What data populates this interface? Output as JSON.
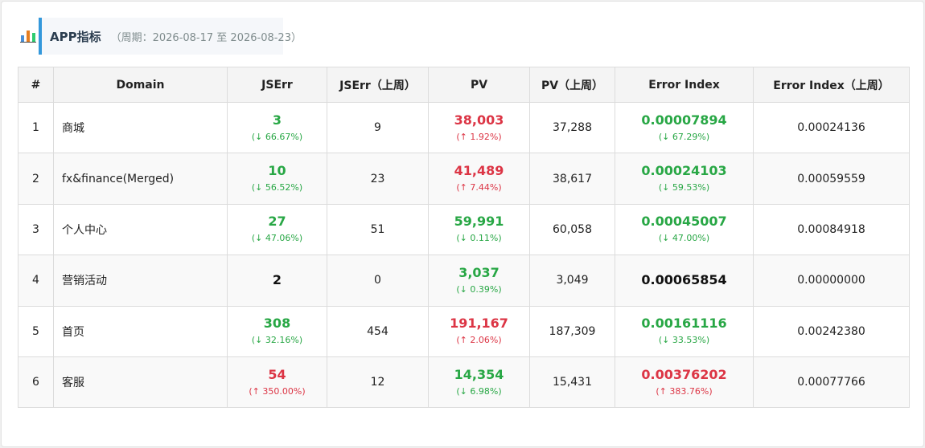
{
  "header": {
    "icon": "chart-icon",
    "title": "APP指标",
    "period": "（周期：2026-08-17 至 2026-08-23）"
  },
  "table": {
    "columns": [
      "#",
      "Domain",
      "JSErr",
      "JSErr（上周）",
      "PV",
      "PV（上周）",
      "Error Index",
      "Error Index（上周）"
    ],
    "rows": [
      {
        "idx": "1",
        "domain": "商城",
        "jserr": "3",
        "jserr_chg": "(↓ 66.67%)",
        "jserr_prev": "9",
        "pv": "38,003",
        "pv_chg": "(↑ 1.92%)",
        "pv_prev": "37,288",
        "ei": "0.00007894",
        "ei_chg": "(↓ 67.29%)",
        "ei_prev": "0.00024136"
      },
      {
        "idx": "2",
        "domain": "fx&finance(Merged)",
        "jserr": "10",
        "jserr_chg": "(↓ 56.52%)",
        "jserr_prev": "23",
        "pv": "41,489",
        "pv_chg": "(↑ 7.44%)",
        "pv_prev": "38,617",
        "ei": "0.00024103",
        "ei_chg": "(↓ 59.53%)",
        "ei_prev": "0.00059559"
      },
      {
        "idx": "3",
        "domain": "个人中心",
        "jserr": "27",
        "jserr_chg": "(↓ 47.06%)",
        "jserr_prev": "51",
        "pv": "59,991",
        "pv_chg": "(↓ 0.11%)",
        "pv_prev": "60,058",
        "ei": "0.00045007",
        "ei_chg": "(↓ 47.00%)",
        "ei_prev": "0.00084918"
      },
      {
        "idx": "4",
        "domain": "营销活动",
        "jserr": "2",
        "jserr_chg": "",
        "jserr_prev": "0",
        "pv": "3,037",
        "pv_chg": "(↓ 0.39%)",
        "pv_prev": "3,049",
        "ei": "0.00065854",
        "ei_chg": "",
        "ei_prev": "0.00000000"
      },
      {
        "idx": "5",
        "domain": "首页",
        "jserr": "308",
        "jserr_chg": "(↓ 32.16%)",
        "jserr_prev": "454",
        "pv": "191,167",
        "pv_chg": "(↑ 2.06%)",
        "pv_prev": "187,309",
        "ei": "0.00161116",
        "ei_chg": "(↓ 33.53%)",
        "ei_prev": "0.00242380"
      },
      {
        "idx": "6",
        "domain": "客服",
        "jserr": "54",
        "jserr_chg": "(↑ 350.00%)",
        "jserr_prev": "12",
        "pv": "14,354",
        "pv_chg": "(↓ 6.98%)",
        "pv_prev": "15,431",
        "ei": "0.00376202",
        "ei_chg": "(↑ 383.76%)",
        "ei_prev": "0.00077766"
      }
    ]
  },
  "colors": {
    "accent": "#3498db",
    "decrease": "#28a745",
    "increase": "#dc3545",
    "neutral": "#111111"
  }
}
